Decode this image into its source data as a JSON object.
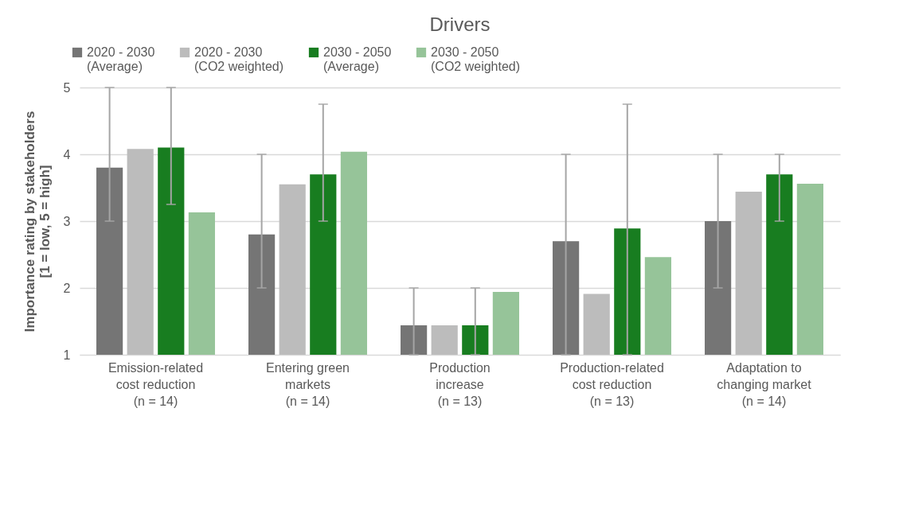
{
  "chart_data": {
    "type": "bar",
    "title": "Drivers",
    "ylabel": "Importance rating by stakeholders\n[1 = low, 5 = high]",
    "categories": [
      "Emission-related\ncost reduction\n(n = 14)",
      "Entering green\nmarkets\n(n = 14)",
      "Production\nincrease\n(n = 13)",
      "Production-related\ncost reduction\n(n = 13)",
      "Adaptation to\nchanging market\n(n = 14)"
    ],
    "series": [
      {
        "name": "2020 - 2030\n(Average)",
        "color": "#757575",
        "values": [
          3.8,
          2.8,
          1.44,
          2.7,
          3.0
        ],
        "errors": [
          [
            3,
            5
          ],
          [
            2,
            4
          ],
          [
            1,
            2
          ],
          [
            1,
            4
          ],
          [
            2,
            4
          ]
        ]
      },
      {
        "name": "2020 - 2030\n(CO2 weighted)",
        "color": "#bcbcbc",
        "values": [
          4.08,
          3.55,
          1.44,
          1.91,
          3.44
        ]
      },
      {
        "name": "2030 - 2050\n(Average)",
        "color": "#187d20",
        "values": [
          4.1,
          3.7,
          1.44,
          2.89,
          3.7
        ],
        "errors": [
          [
            3.25,
            5
          ],
          [
            3,
            4.75
          ],
          [
            1,
            2
          ],
          [
            1,
            4.75
          ],
          [
            3,
            4
          ]
        ]
      },
      {
        "name": "2030 - 2050\n(CO2 weighted)",
        "color": "#96c499",
        "values": [
          3.13,
          4.04,
          1.94,
          2.46,
          3.56
        ]
      }
    ],
    "ylim": [
      1,
      5
    ],
    "yticks": [
      1,
      2,
      3,
      4,
      5
    ],
    "grid": "y",
    "legend": "top"
  }
}
